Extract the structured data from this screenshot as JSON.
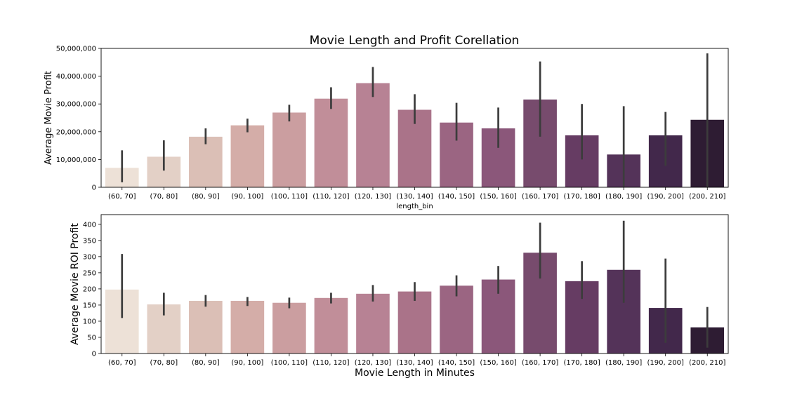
{
  "title": "Movie Length and Profit Corellation",
  "chart_data": [
    {
      "type": "bar",
      "categories": [
        "(60, 70]",
        "(70, 80]",
        "(80, 90]",
        "(90, 100]",
        "(100, 110]",
        "(110, 120]",
        "(120, 130]",
        "(130, 140]",
        "(140, 150]",
        "(150, 160]",
        "(160, 170]",
        "(170, 180]",
        "(180, 190]",
        "(190, 200]",
        "(200, 210]"
      ],
      "values": [
        7000000,
        11000000,
        18200000,
        22300000,
        26900000,
        31900000,
        37500000,
        27900000,
        23300000,
        21200000,
        31600000,
        18700000,
        11800000,
        18700000,
        24300000
      ],
      "error_low": [
        1800000,
        6000000,
        15500000,
        19800000,
        23700000,
        28200000,
        32500000,
        22800000,
        16800000,
        14200000,
        18200000,
        10000000,
        200000,
        7700000,
        0
      ],
      "error_high": [
        13300000,
        16900000,
        21200000,
        24700000,
        29700000,
        36000000,
        43300000,
        33500000,
        30400000,
        28700000,
        45300000,
        30000000,
        29200000,
        27100000,
        48200000
      ],
      "xlabel": "length_bin",
      "ylabel": "Average Movie Profit",
      "ylim": [
        0,
        50000000
      ],
      "yticks": [
        0,
        10000000,
        20000000,
        30000000,
        40000000,
        50000000
      ],
      "ytick_labels": [
        "0",
        "10,000,000",
        "20,000,000",
        "30,000,000",
        "40,000,000",
        "50,000,000"
      ],
      "grid": false,
      "legend": "none"
    },
    {
      "type": "bar",
      "categories": [
        "(60, 70]",
        "(70, 80]",
        "(80, 90]",
        "(90, 100]",
        "(100, 110]",
        "(110, 120]",
        "(120, 130]",
        "(130, 140]",
        "(140, 150]",
        "(150, 160]",
        "(160, 170]",
        "(170, 180]",
        "(180, 190]",
        "(190, 200]",
        "(200, 210]"
      ],
      "values": [
        198,
        152,
        163,
        163,
        157,
        172,
        185,
        192,
        210,
        229,
        312,
        224,
        259,
        141,
        81
      ],
      "error_low": [
        110,
        118,
        145,
        147,
        140,
        155,
        161,
        163,
        177,
        185,
        232,
        169,
        157,
        33,
        18
      ],
      "error_high": [
        308,
        188,
        181,
        175,
        173,
        188,
        212,
        221,
        242,
        271,
        405,
        286,
        411,
        294,
        144
      ],
      "xlabel": "Movie Length in Minutes",
      "ylabel": "Average Movie ROI Profit",
      "ylim": [
        0,
        430
      ],
      "yticks": [
        0,
        50,
        100,
        150,
        200,
        250,
        300,
        350,
        400
      ],
      "ytick_labels": [
        "0",
        "50",
        "100",
        "150",
        "200",
        "250",
        "300",
        "350",
        "400"
      ],
      "grid": false,
      "legend": "none"
    }
  ],
  "palette": [
    "#ede1d7",
    "#e3d0c6",
    "#dbbfb6",
    "#d4ada8",
    "#cb9ea0",
    "#c18e99",
    "#b78294",
    "#aa7389",
    "#9b6582",
    "#8b577a",
    "#774b6d",
    "#663c63",
    "#543359",
    "#42284b",
    "#2e1c33"
  ],
  "error_color": "#3c3c3c"
}
